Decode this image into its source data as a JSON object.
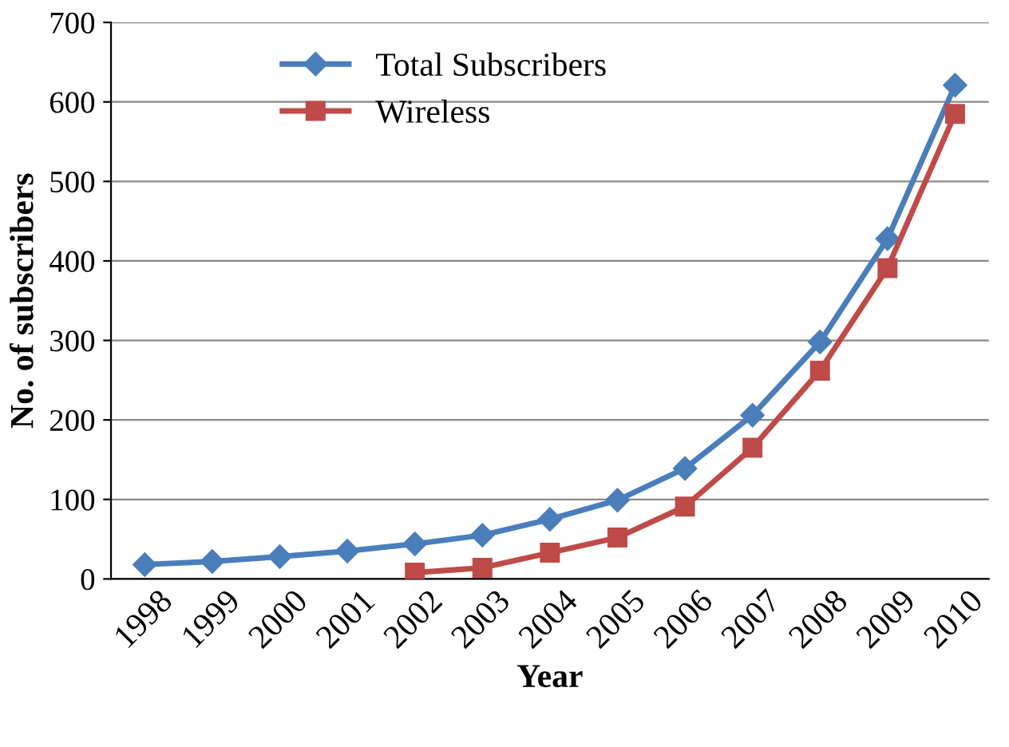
{
  "chart_data": {
    "type": "line",
    "xlabel": "Year",
    "ylabel": "No. of subscribers",
    "categories": [
      "1998",
      "1999",
      "2000",
      "2001",
      "2002",
      "2003",
      "2004",
      "2005",
      "2006",
      "2007",
      "2008",
      "2009",
      "2010"
    ],
    "series": [
      {
        "name": "Total Subscribers",
        "color": "#4a7ebb",
        "marker": "diamond",
        "values": [
          18,
          22,
          28,
          35,
          44,
          55,
          75,
          99,
          139,
          206,
          298,
          428,
          621
        ]
      },
      {
        "name": "Wireless",
        "color": "#be4b48",
        "marker": "square",
        "values": [
          null,
          null,
          null,
          null,
          8,
          14,
          33,
          52,
          91,
          165,
          262,
          391,
          585
        ]
      }
    ],
    "ylim": [
      0,
      700
    ],
    "yticks": [
      0,
      100,
      200,
      300,
      400,
      500,
      600,
      700
    ],
    "grid": "y",
    "legend": "top",
    "line_style": "solid"
  }
}
